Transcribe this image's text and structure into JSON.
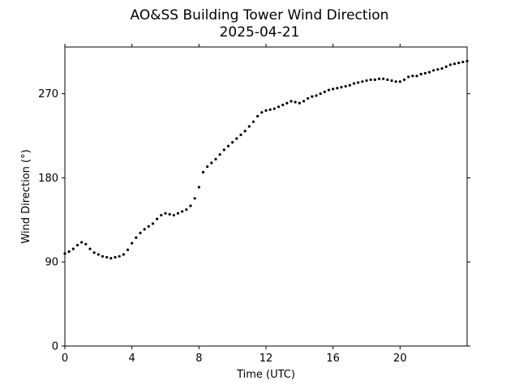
{
  "chart_data": {
    "type": "scatter",
    "title": "AO&SS Building Tower Wind Direction",
    "subtitle": "2025-04-21",
    "xlabel": "Time (UTC)",
    "ylabel": "Wind Direction (°)",
    "xlim": [
      0,
      24
    ],
    "ylim": [
      0,
      320
    ],
    "xticks": [
      0,
      4,
      8,
      12,
      16,
      20
    ],
    "yticks": [
      0,
      90,
      180,
      270
    ],
    "grid": false,
    "marker_color": "#000000",
    "series": [
      {
        "x": [
          0.0,
          0.25,
          0.5,
          0.75,
          1.0,
          1.25,
          1.5,
          1.75,
          2.0,
          2.25,
          2.5,
          2.75,
          3.0,
          3.25,
          3.5,
          3.75,
          4.0,
          4.25,
          4.5,
          4.75,
          5.0,
          5.25,
          5.5,
          5.75,
          6.0,
          6.25,
          6.5,
          6.75,
          7.0,
          7.25,
          7.5,
          7.75,
          8.0,
          8.25,
          8.5,
          8.75,
          9.0,
          9.25,
          9.5,
          9.75,
          10.0,
          10.25,
          10.5,
          10.75,
          11.0,
          11.25,
          11.5,
          11.75,
          12.0,
          12.25,
          12.5,
          12.75,
          13.0,
          13.25,
          13.5,
          13.75,
          14.0,
          14.25,
          14.5,
          14.75,
          15.0,
          15.25,
          15.5,
          15.75,
          16.0,
          16.25,
          16.5,
          16.75,
          17.0,
          17.25,
          17.5,
          17.75,
          18.0,
          18.25,
          18.5,
          18.75,
          19.0,
          19.25,
          19.5,
          19.75,
          20.0,
          20.25,
          20.5,
          20.75,
          21.0,
          21.25,
          21.5,
          21.75,
          22.0,
          22.25,
          22.5,
          22.75,
          23.0,
          23.25,
          23.5,
          23.75,
          24.0
        ],
        "y": [
          99,
          101,
          104,
          108,
          111,
          109,
          104,
          100,
          98,
          96,
          95,
          94,
          95,
          96,
          98,
          103,
          110,
          116,
          121,
          125,
          128,
          131,
          136,
          140,
          142,
          141,
          140,
          142,
          144,
          146,
          150,
          158,
          170,
          186,
          192,
          196,
          200,
          205,
          210,
          214,
          218,
          222,
          226,
          230,
          235,
          240,
          246,
          250,
          252,
          253,
          254,
          256,
          258,
          260,
          262,
          261,
          260,
          262,
          265,
          267,
          268,
          270,
          272,
          274,
          275,
          276,
          277,
          278,
          279,
          281,
          282,
          283,
          284,
          285,
          285,
          286,
          286,
          285,
          284,
          283,
          283,
          285,
          288,
          289,
          289,
          291,
          292,
          293,
          295,
          296,
          297,
          299,
          301,
          302,
          303,
          304,
          305
        ]
      }
    ]
  }
}
